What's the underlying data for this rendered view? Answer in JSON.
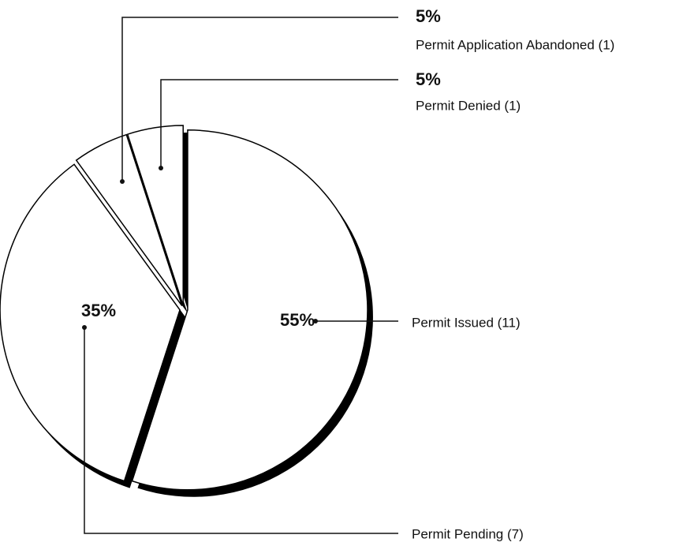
{
  "chart_data": {
    "type": "pie",
    "categories": [
      "Permit Issued (11)",
      "Permit Pending (7)",
      "Permit Application Abandoned (1)",
      "Permit Denied (1)"
    ],
    "values": [
      55,
      35,
      5,
      5
    ],
    "value_labels": [
      "55%",
      "35%",
      "5%",
      "5%"
    ],
    "color": "#ffffff"
  }
}
